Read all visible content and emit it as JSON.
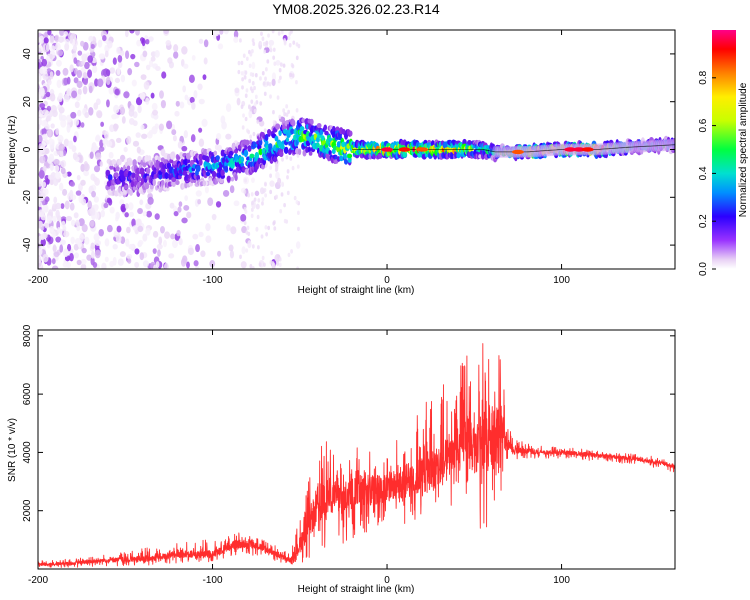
{
  "title": "YM08.2025.326.02.23.R14",
  "chart_data": [
    {
      "type": "heatmap",
      "title": "YM08.2025.326.02.23.R14",
      "xlabel": "Height of straight line (km)",
      "ylabel": "Frequency (Hz)",
      "colorbar_label": "Normalized spectral amplitude",
      "xlim": [
        -200,
        165
      ],
      "ylim": [
        -50,
        50
      ],
      "x_ticks": [
        -200,
        -100,
        0,
        100
      ],
      "y_ticks": [
        -40,
        -20,
        0,
        20,
        40
      ],
      "colorbar_range": [
        0,
        1
      ],
      "colorbar_ticks": [
        0.0,
        0.2,
        0.4,
        0.6,
        0.8
      ],
      "colormap": [
        "#ffffff",
        "#e9d5f5",
        "#8a2be2",
        "#3300ff",
        "#00a0ff",
        "#00e0d0",
        "#00ff00",
        "#c8ff00",
        "#ffff00",
        "#ff8000",
        "#ff0000",
        "#ff0080"
      ],
      "ridge": {
        "description_points_x": [
          -155,
          -130,
          -110,
          -90,
          -75,
          -60,
          -50,
          -40,
          -30,
          -20,
          0,
          20,
          40,
          55,
          62,
          80,
          100,
          120,
          140,
          165
        ],
        "center_frequency_hz": [
          -12,
          -10,
          -8,
          -6,
          -2,
          4,
          6,
          4,
          2,
          0,
          0,
          0,
          0,
          0,
          -1,
          -1,
          0,
          0,
          1,
          2
        ],
        "peak_amplitude": [
          0.25,
          0.3,
          0.35,
          0.45,
          0.5,
          0.55,
          0.55,
          0.6,
          0.6,
          0.7,
          0.85,
          0.85,
          0.8,
          0.5,
          0.5,
          0.85,
          0.9,
          0.95,
          0.5,
          0.45
        ]
      }
    },
    {
      "type": "line",
      "xlabel": "Height of straight line (km)",
      "ylabel": "SNR (10 * v/v)",
      "xlim": [
        -200,
        165
      ],
      "ylim": [
        0,
        8200
      ],
      "x_ticks": [
        -200,
        -100,
        0,
        100
      ],
      "y_ticks": [
        2000,
        4000,
        6000,
        8000
      ],
      "color": "#ff2d2d",
      "series": [
        {
          "x": [
            -200,
            -180,
            -160,
            -140,
            -120,
            -110,
            -100,
            -90,
            -80,
            -70,
            -60,
            -55,
            -50,
            -45,
            -40,
            -35,
            -30,
            -25,
            -20,
            -15,
            -10,
            -5,
            0,
            10,
            20,
            30,
            40,
            45,
            50,
            55,
            60,
            65,
            70,
            72,
            80,
            90,
            100,
            110,
            120,
            130,
            140,
            150,
            160,
            165
          ],
          "y": [
            150,
            200,
            300,
            350,
            500,
            500,
            500,
            800,
            900,
            700,
            400,
            300,
            800,
            1500,
            2200,
            2500,
            2500,
            2400,
            2600,
            2800,
            2700,
            2700,
            2800,
            3000,
            3200,
            3500,
            4000,
            4500,
            4000,
            4700,
            4600,
            4800,
            4200,
            4100,
            4050,
            4000,
            4000,
            3950,
            3900,
            3850,
            3800,
            3700,
            3600,
            3500
          ],
          "y_max": [
            300,
            350,
            500,
            700,
            900,
            1000,
            1000,
            1200,
            1300,
            1000,
            700,
            600,
            1800,
            3000,
            4200,
            4500,
            3900,
            3800,
            4000,
            4300,
            4100,
            4200,
            4100,
            4800,
            5500,
            6400,
            6600,
            7600,
            6400,
            8200,
            7900,
            7200,
            4800,
            4600,
            4300,
            4200,
            4200,
            4150,
            4050,
            4000,
            3950,
            3900,
            3800,
            3700
          ],
          "y_min": [
            50,
            50,
            100,
            100,
            200,
            250,
            250,
            400,
            500,
            400,
            200,
            150,
            200,
            300,
            500,
            600,
            800,
            700,
            900,
            1000,
            1100,
            1300,
            1500,
            1500,
            1800,
            2000,
            2200,
            2500,
            1800,
            1000,
            2000,
            2300,
            3800,
            3700,
            3800,
            3800,
            3800,
            3750,
            3700,
            3650,
            3600,
            3500,
            3400,
            3300
          ]
        }
      ]
    }
  ]
}
